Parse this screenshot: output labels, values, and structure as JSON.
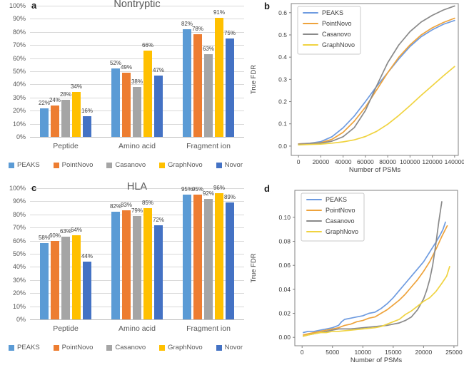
{
  "figure": {
    "background": "#ffffff"
  },
  "palette": {
    "bar_gridline": "#d9d9d9",
    "axis_text": "#595959",
    "data_label_text": "#404040",
    "line_plot_spine": "#808080"
  },
  "chart_data": [
    {
      "id": "a",
      "panel_label": "a",
      "type": "bar",
      "title": "Nontryptic",
      "categories": [
        "Peptide",
        "Amino acid",
        "Fragment ion"
      ],
      "series": [
        {
          "name": "PEAKS",
          "color": "#5B9BD5",
          "values": [
            22,
            52,
            82
          ]
        },
        {
          "name": "PointNovo",
          "color": "#ED7D31",
          "values": [
            24,
            49,
            78
          ]
        },
        {
          "name": "Casanovo",
          "color": "#A5A5A5",
          "values": [
            28,
            38,
            63
          ]
        },
        {
          "name": "GraphNovo",
          "color": "#FFC000",
          "values": [
            34,
            66,
            91
          ]
        },
        {
          "name": "Novor",
          "color": "#4472C4",
          "values": [
            16,
            47,
            75
          ]
        }
      ],
      "ylim": [
        0,
        100
      ],
      "ytick_labels": [
        "0%",
        "10%",
        "20%",
        "30%",
        "40%",
        "50%",
        "60%",
        "70%",
        "80%",
        "90%",
        "100%"
      ],
      "value_suffix": "%",
      "grid": true,
      "legend_position": "bottom",
      "legend": [
        "PEAKS",
        "PointNovo",
        "Casanovo",
        "GraphNovo",
        "Novor"
      ]
    },
    {
      "id": "b",
      "panel_label": "b",
      "type": "line",
      "xlabel": "Number of PSMs",
      "ylabel": "True FDR",
      "xlim": [
        -6500,
        143300
      ],
      "ylim": [
        -0.042,
        0.641
      ],
      "xticks": [
        0,
        20000,
        40000,
        60000,
        80000,
        100000,
        120000,
        140000
      ],
      "xtick_labels": [
        "0",
        "20000",
        "40000",
        "60000",
        "80000",
        "100000",
        "120000",
        "140000"
      ],
      "yticks": [
        0,
        0.1,
        0.2,
        0.3,
        0.4,
        0.5,
        0.6
      ],
      "ytick_labels": [
        "0.0",
        "0.1",
        "0.2",
        "0.3",
        "0.4",
        "0.5",
        "0.6"
      ],
      "grid": false,
      "legend_position": "upper-left",
      "series": [
        {
          "name": "PEAKS",
          "color": "#6E9BE0",
          "points": [
            [
              0,
              0.01
            ],
            [
              10000,
              0.013
            ],
            [
              20000,
              0.02
            ],
            [
              30000,
              0.042
            ],
            [
              40000,
              0.082
            ],
            [
              50000,
              0.135
            ],
            [
              60000,
              0.2
            ],
            [
              70000,
              0.268
            ],
            [
              80000,
              0.33
            ],
            [
              90000,
              0.392
            ],
            [
              100000,
              0.448
            ],
            [
              110000,
              0.492
            ],
            [
              120000,
              0.523
            ],
            [
              130000,
              0.548
            ],
            [
              140000,
              0.565
            ]
          ]
        },
        {
          "name": "PointNovo",
          "color": "#EEA33C",
          "points": [
            [
              0,
              0.01
            ],
            [
              10000,
              0.011
            ],
            [
              20000,
              0.015
            ],
            [
              30000,
              0.03
            ],
            [
              40000,
              0.062
            ],
            [
              50000,
              0.112
            ],
            [
              60000,
              0.175
            ],
            [
              70000,
              0.252
            ],
            [
              80000,
              0.33
            ],
            [
              90000,
              0.4
            ],
            [
              100000,
              0.455
            ],
            [
              110000,
              0.5
            ],
            [
              120000,
              0.532
            ],
            [
              130000,
              0.556
            ],
            [
              140000,
              0.575
            ]
          ]
        },
        {
          "name": "Casanovo",
          "color": "#8A8A8A",
          "points": [
            [
              0,
              0.008
            ],
            [
              10000,
              0.01
            ],
            [
              20000,
              0.013
            ],
            [
              30000,
              0.022
            ],
            [
              40000,
              0.042
            ],
            [
              50000,
              0.083
            ],
            [
              60000,
              0.16
            ],
            [
              70000,
              0.27
            ],
            [
              80000,
              0.375
            ],
            [
              90000,
              0.455
            ],
            [
              100000,
              0.515
            ],
            [
              110000,
              0.558
            ],
            [
              120000,
              0.588
            ],
            [
              130000,
              0.612
            ],
            [
              140000,
              0.63
            ]
          ]
        },
        {
          "name": "GraphNovo",
          "color": "#F0D340",
          "points": [
            [
              0,
              0.005
            ],
            [
              10000,
              0.007
            ],
            [
              20000,
              0.009
            ],
            [
              30000,
              0.013
            ],
            [
              40000,
              0.019
            ],
            [
              50000,
              0.028
            ],
            [
              60000,
              0.043
            ],
            [
              70000,
              0.066
            ],
            [
              80000,
              0.098
            ],
            [
              90000,
              0.138
            ],
            [
              100000,
              0.182
            ],
            [
              110000,
              0.228
            ],
            [
              120000,
              0.272
            ],
            [
              130000,
              0.316
            ],
            [
              140000,
              0.358
            ]
          ]
        }
      ]
    },
    {
      "id": "c",
      "panel_label": "c",
      "type": "bar",
      "title": "HLA",
      "categories": [
        "Peptide",
        "Amino acid",
        "Fragment ion"
      ],
      "series": [
        {
          "name": "PEAKS",
          "color": "#5B9BD5",
          "values": [
            58,
            82,
            95
          ]
        },
        {
          "name": "PointNovo",
          "color": "#ED7D31",
          "values": [
            60,
            83,
            95
          ]
        },
        {
          "name": "Casanovo",
          "color": "#A5A5A5",
          "values": [
            63,
            79,
            92
          ]
        },
        {
          "name": "GraphNovo",
          "color": "#FFC000",
          "values": [
            64,
            85,
            96
          ]
        },
        {
          "name": "Novor",
          "color": "#4472C4",
          "values": [
            44,
            72,
            89
          ]
        }
      ],
      "ylim": [
        0,
        100
      ],
      "ytick_labels": [
        "0%",
        "10%",
        "20%",
        "30%",
        "40%",
        "50%",
        "60%",
        "70%",
        "80%",
        "90%",
        "100%"
      ],
      "value_suffix": "%",
      "grid": true,
      "legend_position": "bottom",
      "legend": [
        "PEAKS",
        "PointNovo",
        "Casanovo",
        "GraphNovo",
        "Novor"
      ]
    },
    {
      "id": "d",
      "panel_label": "d",
      "type": "line",
      "xlabel": "Number of PSMs",
      "ylabel": "True FDR",
      "xlim": [
        -1200,
        25600
      ],
      "ylim": [
        -0.007,
        0.1225
      ],
      "xticks": [
        0,
        5000,
        10000,
        15000,
        20000,
        25000
      ],
      "xtick_labels": [
        "0",
        "5000",
        "10000",
        "15000",
        "20000",
        "25000"
      ],
      "yticks": [
        0,
        0.02,
        0.04,
        0.06,
        0.08,
        0.1
      ],
      "ytick_labels": [
        "0.00",
        "0.02",
        "0.04",
        "0.06",
        "0.08",
        "0.10"
      ],
      "grid": false,
      "legend_position": "upper-left",
      "series": [
        {
          "name": "PEAKS",
          "color": "#6E9BE0",
          "points": [
            [
              200,
              0.004
            ],
            [
              1000,
              0.005
            ],
            [
              2000,
              0.005
            ],
            [
              3000,
              0.006
            ],
            [
              4000,
              0.007
            ],
            [
              5000,
              0.008
            ],
            [
              6000,
              0.01
            ],
            [
              6500,
              0.013
            ],
            [
              7000,
              0.015
            ],
            [
              8000,
              0.016
            ],
            [
              9000,
              0.017
            ],
            [
              10000,
              0.018
            ],
            [
              11000,
              0.02
            ],
            [
              12000,
              0.021
            ],
            [
              13000,
              0.024
            ],
            [
              14000,
              0.028
            ],
            [
              15000,
              0.033
            ],
            [
              16000,
              0.039
            ],
            [
              17000,
              0.045
            ],
            [
              18000,
              0.051
            ],
            [
              19000,
              0.057
            ],
            [
              20000,
              0.063
            ],
            [
              21000,
              0.071
            ],
            [
              22000,
              0.079
            ],
            [
              22700,
              0.085
            ],
            [
              23200,
              0.09
            ],
            [
              23600,
              0.096
            ]
          ]
        },
        {
          "name": "PointNovo",
          "color": "#EEA33C",
          "points": [
            [
              200,
              0.002
            ],
            [
              1000,
              0.003
            ],
            [
              2000,
              0.004
            ],
            [
              3000,
              0.005
            ],
            [
              4000,
              0.006
            ],
            [
              5000,
              0.007
            ],
            [
              6000,
              0.008
            ],
            [
              7000,
              0.01
            ],
            [
              8000,
              0.011
            ],
            [
              9000,
              0.013
            ],
            [
              10000,
              0.014
            ],
            [
              11000,
              0.016
            ],
            [
              12000,
              0.017
            ],
            [
              13000,
              0.02
            ],
            [
              14000,
              0.023
            ],
            [
              15000,
              0.027
            ],
            [
              16000,
              0.031
            ],
            [
              17000,
              0.036
            ],
            [
              18000,
              0.042
            ],
            [
              19000,
              0.048
            ],
            [
              20000,
              0.055
            ],
            [
              21000,
              0.063
            ],
            [
              22000,
              0.073
            ],
            [
              23000,
              0.084
            ],
            [
              23900,
              0.093
            ]
          ]
        },
        {
          "name": "Casanovo",
          "color": "#8A8A8A",
          "points": [
            [
              200,
              0.001
            ],
            [
              1000,
              0.002
            ],
            [
              2000,
              0.003
            ],
            [
              3000,
              0.004
            ],
            [
              4000,
              0.005
            ],
            [
              5000,
              0.006
            ],
            [
              6000,
              0.007
            ],
            [
              8000,
              0.007
            ],
            [
              10000,
              0.008
            ],
            [
              12000,
              0.009
            ],
            [
              14000,
              0.01
            ],
            [
              15000,
              0.011
            ],
            [
              16000,
              0.012
            ],
            [
              17000,
              0.014
            ],
            [
              18000,
              0.017
            ],
            [
              19000,
              0.023
            ],
            [
              20000,
              0.032
            ],
            [
              20500,
              0.039
            ],
            [
              21000,
              0.048
            ],
            [
              21500,
              0.06
            ],
            [
              22000,
              0.077
            ],
            [
              22500,
              0.096
            ],
            [
              23000,
              0.113
            ]
          ]
        },
        {
          "name": "GraphNovo",
          "color": "#F0D340",
          "points": [
            [
              200,
              0.001
            ],
            [
              1000,
              0.002
            ],
            [
              2000,
              0.003
            ],
            [
              3000,
              0.004
            ],
            [
              4000,
              0.004
            ],
            [
              5000,
              0.005
            ],
            [
              6000,
              0.005
            ],
            [
              8000,
              0.006
            ],
            [
              10000,
              0.007
            ],
            [
              12000,
              0.008
            ],
            [
              13000,
              0.009
            ],
            [
              14000,
              0.011
            ],
            [
              15000,
              0.013
            ],
            [
              16000,
              0.015
            ],
            [
              17000,
              0.019
            ],
            [
              18000,
              0.022
            ],
            [
              19000,
              0.026
            ],
            [
              20000,
              0.03
            ],
            [
              21000,
              0.033
            ],
            [
              22000,
              0.038
            ],
            [
              23000,
              0.045
            ],
            [
              23800,
              0.051
            ],
            [
              24300,
              0.059
            ]
          ]
        }
      ]
    }
  ]
}
